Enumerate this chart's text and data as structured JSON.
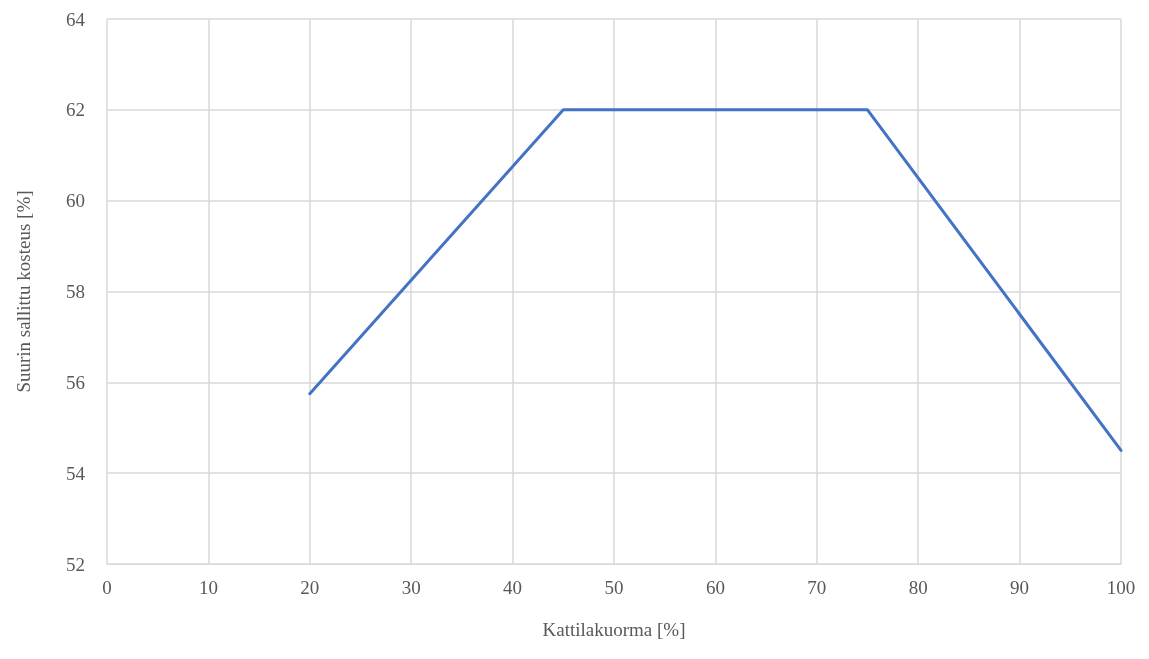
{
  "chart_data": {
    "type": "line",
    "xlabel": "Kattilakuorma [%]",
    "ylabel": "Suurin sallittu kosteus [%]",
    "x": [
      20,
      45,
      75,
      100
    ],
    "series": [
      {
        "color": "#4472c4",
        "values": [
          55.75,
          62,
          62,
          54.5
        ]
      }
    ],
    "xlim": [
      0,
      100
    ],
    "xticks": [
      0,
      10,
      20,
      30,
      40,
      50,
      60,
      70,
      80,
      90,
      100
    ],
    "ylim": [
      52,
      64
    ],
    "yticks": [
      52,
      54,
      56,
      58,
      60,
      62,
      64
    ],
    "grid": true,
    "marker": "none",
    "line_style": "solid"
  }
}
